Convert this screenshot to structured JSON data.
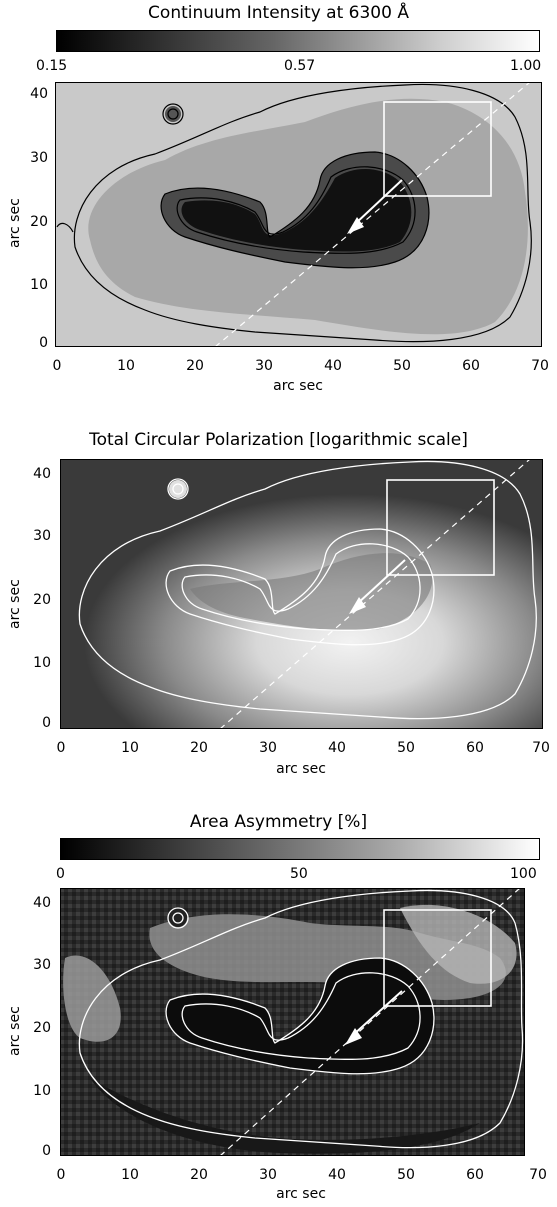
{
  "panels": [
    {
      "title": "Continuum Intensity at 6300 Å",
      "colorbar_ticks": [
        "0.15",
        "0.57",
        "1.00"
      ],
      "xlabel": "arc sec",
      "ylabel": "arc sec",
      "xticks": [
        "0",
        "10",
        "20",
        "30",
        "40",
        "50",
        "60",
        "70"
      ],
      "yticks": [
        "0",
        "10",
        "20",
        "30",
        "40"
      ],
      "contour_color": "#000000",
      "style": "continuum"
    },
    {
      "title": "Total Circular Polarization [logarithmic scale]",
      "xlabel": "arc sec",
      "ylabel": "arc sec",
      "xticks": [
        "0",
        "10",
        "20",
        "30",
        "40",
        "50",
        "60",
        "70"
      ],
      "yticks": [
        "0",
        "10",
        "20",
        "30",
        "40"
      ],
      "contour_color": "#ffffff",
      "style": "polarization"
    },
    {
      "title": "Area Asymmetry [%]",
      "colorbar_ticks": [
        "0",
        "50",
        "100"
      ],
      "xlabel": "arc sec",
      "ylabel": "arc sec",
      "xticks": [
        "0",
        "10",
        "20",
        "30",
        "40",
        "50",
        "60",
        "70"
      ],
      "yticks": [
        "0",
        "10",
        "20",
        "30",
        "40"
      ],
      "contour_color": "#ffffff",
      "style": "asymmetry"
    }
  ],
  "colors": {
    "frame": "#000000",
    "overlay": "#ffffff"
  }
}
